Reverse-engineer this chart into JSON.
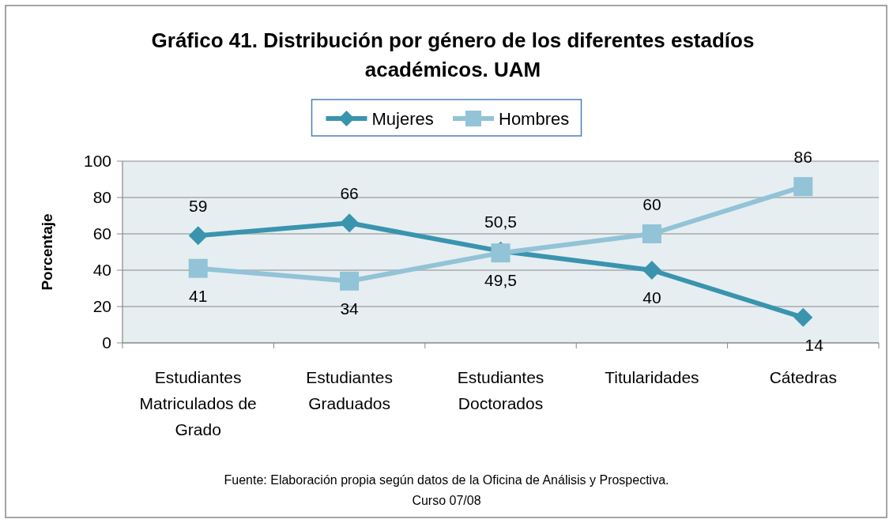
{
  "chart_data": {
    "type": "line",
    "title": "Gráfico 41. Distribución por género de los diferentes estadíos académicos. UAM",
    "ylabel": "Porcentaje",
    "categories": [
      "Estudiantes Matriculados de Grado",
      "Estudiantes Graduados",
      "Estudiantes Doctorados",
      "Titularidades",
      "Cátedras"
    ],
    "series": [
      {
        "name": "Mujeres",
        "color": "#3a94ae",
        "marker": "diamond",
        "values": [
          59,
          66,
          50.5,
          40,
          14
        ],
        "value_labels": [
          "59",
          "66",
          "50,5",
          "40",
          "14"
        ]
      },
      {
        "name": "Hombres",
        "color": "#92c3d6",
        "marker": "square",
        "values": [
          41,
          34,
          49.5,
          60,
          86
        ],
        "value_labels": [
          "41",
          "34",
          "49,5",
          "60",
          "86"
        ]
      }
    ],
    "ylim": [
      0,
      100
    ],
    "yticks": [
      0,
      20,
      40,
      60,
      80,
      100
    ],
    "grid": "y",
    "legend": "top",
    "line_style": "solid",
    "annotations": [
      "Fuente: Elaboración propia según datos de la Oficina de Análisis y Prospectiva.",
      "Curso 07/08"
    ]
  }
}
